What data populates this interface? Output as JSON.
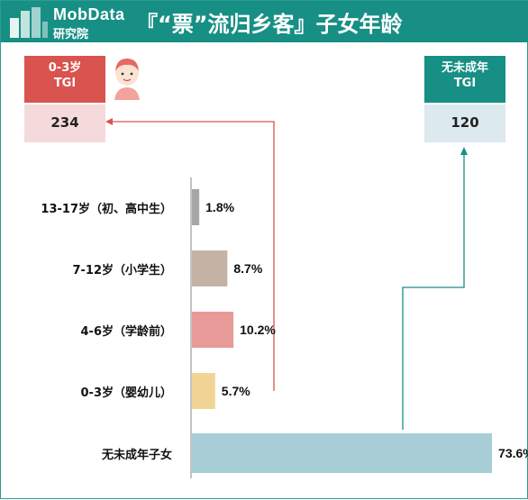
{
  "header": {
    "logo_text_1": "MobData",
    "logo_text_2": "研究院",
    "title": "『“票”流归乡客』子女年龄"
  },
  "tgi_left": {
    "line1": "0-3岁",
    "line2": "TGI",
    "value": "234"
  },
  "tgi_right": {
    "line1": "无未成年",
    "line2": "TGI",
    "value": "120"
  },
  "colors": {
    "header": "#178f84",
    "left_accent": "#d9534f",
    "right_accent": "#178f84"
  },
  "chart_data": {
    "type": "bar",
    "orientation": "horizontal",
    "title": "",
    "xlabel": "",
    "ylabel": "",
    "xlim": [
      0,
      80
    ],
    "grid": false,
    "categories": [
      "13-17岁（初、高中生）",
      "7-12岁（小学生）",
      "4-6岁（学龄前）",
      "0-3岁（婴幼儿）",
      "无未成年子女"
    ],
    "values": [
      1.8,
      8.7,
      10.2,
      5.7,
      73.6
    ],
    "labels": [
      "1.8%",
      "8.7%",
      "10.2%",
      "5.7%",
      "73.6%"
    ],
    "bar_colors": [
      "#a6a6a6",
      "#c4b2a4",
      "#e89a99",
      "#f0d596",
      "#a7ced6"
    ]
  }
}
